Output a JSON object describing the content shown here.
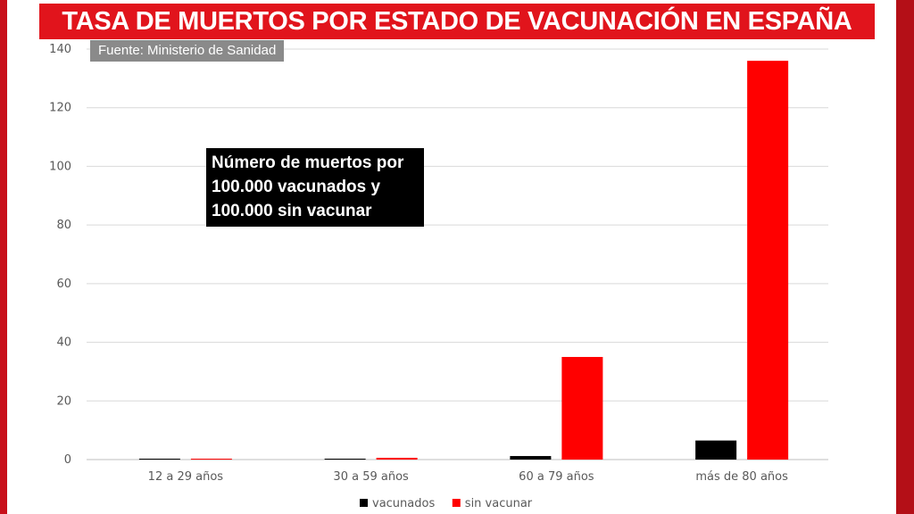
{
  "header": {
    "title": "TASA DE MUERTOS POR ESTADO DE VACUNACIÓN EN ESPAÑA",
    "source": "Fuente: Ministerio de Sanidad"
  },
  "annotation": {
    "lines": [
      "Número de muertos por",
      "100.000 vacunados y",
      "100.000 sin vacunar"
    ]
  },
  "colors": {
    "accent": "#e1141c",
    "vacunados": "#000000",
    "sin_vacunar": "#ff0000"
  },
  "chart_data": {
    "type": "bar",
    "title": "",
    "xlabel": "",
    "ylabel": "",
    "categories": [
      "12 a 29 años",
      "30 a 59 años",
      "60 a 79 años",
      "más de 80 años"
    ],
    "series": [
      {
        "name": "vacunados",
        "color": "#000000",
        "values": [
          0.3,
          0.3,
          1.2,
          6.5
        ]
      },
      {
        "name": "sin vacunar",
        "color": "#ff0000",
        "values": [
          0.3,
          0.6,
          35,
          136
        ]
      }
    ],
    "ylim": [
      0,
      140
    ],
    "yticks": [
      0,
      20,
      40,
      60,
      80,
      100,
      120,
      140
    ],
    "grid": true,
    "legend": "bottom-center"
  }
}
